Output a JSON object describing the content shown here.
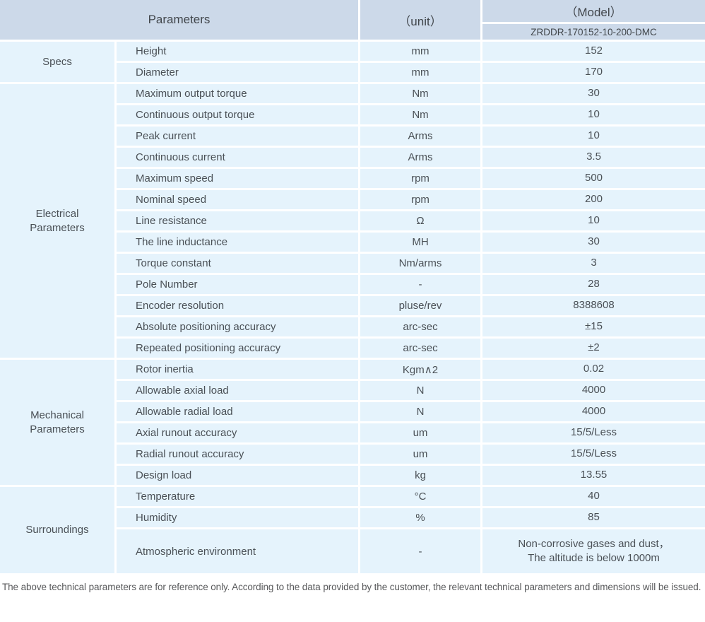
{
  "colors": {
    "header_bg": "#ccd9e9",
    "row_bg": "#e5f3fc",
    "separator": "#ffffff",
    "header_text": "#41464b",
    "body_text": "#4a5056"
  },
  "header": {
    "parameters_label": "Parameters",
    "unit_label": "（unit）",
    "model_label": "（Model）",
    "model_value": "ZRDDR-170152-10-200-DMC"
  },
  "groups": [
    {
      "id": "specs",
      "name": "Specs",
      "rows": [
        {
          "param": "Height",
          "unit": "mm",
          "value": "152"
        },
        {
          "param": "Diameter",
          "unit": "mm",
          "value": "170"
        }
      ]
    },
    {
      "id": "electrical-parameters",
      "name": "Electrical\nParameters",
      "rows": [
        {
          "param": "Maximum output torque",
          "unit": "Nm",
          "value": "30"
        },
        {
          "param": "Continuous output torque",
          "unit": "Nm",
          "value": "10"
        },
        {
          "param": "Peak current",
          "unit": "Arms",
          "value": "10"
        },
        {
          "param": "Continuous current",
          "unit": "Arms",
          "value": "3.5"
        },
        {
          "param": "Maximum speed",
          "unit": "rpm",
          "value": "500"
        },
        {
          "param": "Nominal speed",
          "unit": "rpm",
          "value": "200"
        },
        {
          "param": "Line resistance",
          "unit": "Ω",
          "value": "10"
        },
        {
          "param": "The line inductance",
          "unit": "MH",
          "value": "30"
        },
        {
          "param": "Torque constant",
          "unit": "Nm/arms",
          "value": "3"
        },
        {
          "param": "Pole Number",
          "unit": "-",
          "value": "28"
        },
        {
          "param": "Encoder resolution",
          "unit": "pluse/rev",
          "value": "8388608"
        },
        {
          "param": "Absolute positioning accuracy",
          "unit": "arc-sec",
          "value": "±15"
        },
        {
          "param": "Repeated positioning accuracy",
          "unit": "arc-sec",
          "value": "±2"
        }
      ]
    },
    {
      "id": "mechanical-parameters",
      "name": "Mechanical\nParameters",
      "rows": [
        {
          "param": "Rotor inertia",
          "unit": "Kgm∧2",
          "value": "0.02"
        },
        {
          "param": "Allowable axial load",
          "unit": "N",
          "value": "4000"
        },
        {
          "param": "Allowable radial load",
          "unit": "N",
          "value": "4000"
        },
        {
          "param": "Axial runout accuracy",
          "unit": "um",
          "value": "15/5/Less"
        },
        {
          "param": "Radial runout accuracy",
          "unit": "um",
          "value": "15/5/Less"
        },
        {
          "param": "Design load",
          "unit": "kg",
          "value": "13.55"
        }
      ]
    },
    {
      "id": "surroundings",
      "name": "Surroundings",
      "rows": [
        {
          "param": "Temperature",
          "unit": "°C",
          "value": "40"
        },
        {
          "param": "Humidity",
          "unit": "%",
          "value": "85"
        },
        {
          "param": "Atmospheric environment",
          "unit": "-",
          "value": "Non-corrosive gases and dust，\nThe altitude is below 1000m",
          "tall": true
        }
      ]
    }
  ],
  "footer": {
    "note": "The above technical parameters are for reference only. According to the data provided by the customer, the relevant technical parameters and dimensions will be issued."
  }
}
